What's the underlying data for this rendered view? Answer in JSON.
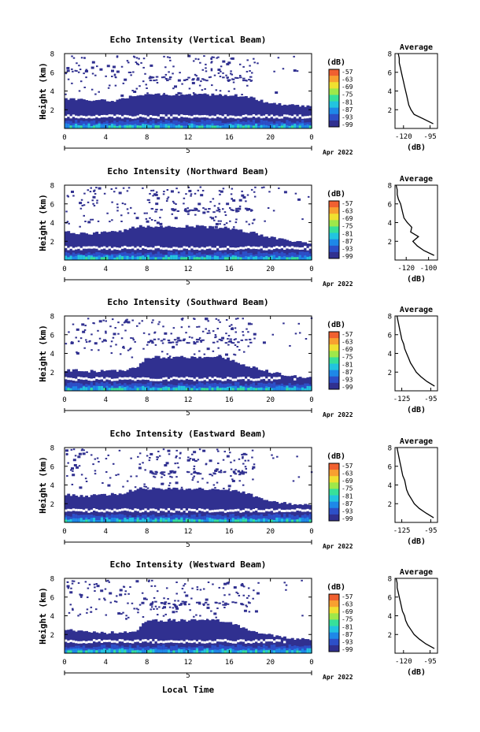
{
  "figure": {
    "xaxis_label": "Local Time",
    "date_label": "Apr 2022",
    "date_day": "5",
    "colorbar_unit": "(dB)",
    "colorbar_ticks": [
      "-57",
      "-63",
      "-69",
      "-75",
      "-81",
      "-87",
      "-93",
      "-99"
    ],
    "colorscale": [
      "#303090",
      "#2d4fc8",
      "#1e88e8",
      "#22c4e0",
      "#37e09a",
      "#9ee84a",
      "#f0e030",
      "#f8a030",
      "#f06030"
    ]
  },
  "chart_data": [
    {
      "type": "heatmap",
      "title": "Echo Intensity (Vertical Beam)",
      "ylabel": "Height (km)",
      "xlim": [
        0,
        24
      ],
      "ylim": [
        0,
        8
      ],
      "xticks": [
        "0",
        "4",
        "8",
        "12",
        "16",
        "20",
        "0"
      ],
      "yticks": [
        "2",
        "4",
        "6",
        "8"
      ],
      "clim": [
        -99,
        -57
      ],
      "boundary_layer_top_km": [
        3.2,
        3.1,
        3.0,
        3.0,
        3.0,
        3.0,
        3.3,
        3.6,
        3.6,
        3.6,
        3.6,
        3.6,
        3.6,
        3.6,
        3.6,
        3.6,
        3.6,
        3.5,
        3.3,
        3.0,
        2.6,
        2.6,
        2.5,
        2.4
      ],
      "average": {
        "title": "Average",
        "xlabel": "(dB)",
        "xticks": [
          "-120",
          "-95"
        ],
        "xlim": [
          -128,
          -88
        ],
        "yticks": [
          "2",
          "4",
          "6",
          "8"
        ],
        "ylim": [
          0,
          8
        ],
        "height_km": [
          0.5,
          1.0,
          1.5,
          2.0,
          2.5,
          3.0,
          3.5,
          4.0,
          4.5,
          5.0,
          5.5,
          6.0,
          6.5,
          7.0,
          7.5,
          8.0
        ],
        "value_db": [
          -92,
          -101,
          -110,
          -113,
          -115,
          -116,
          -117,
          -118,
          -119,
          -120,
          -121,
          -122,
          -123,
          -124,
          -124,
          -125
        ]
      }
    },
    {
      "type": "heatmap",
      "title": "Echo Intensity (Northward Beam)",
      "ylabel": "Height (km)",
      "xlim": [
        0,
        24
      ],
      "ylim": [
        0,
        8
      ],
      "xticks": [
        "0",
        "4",
        "8",
        "12",
        "16",
        "20",
        "0"
      ],
      "yticks": [
        "2",
        "4",
        "6",
        "8"
      ],
      "clim": [
        -99,
        -57
      ],
      "boundary_layer_top_km": [
        3.0,
        2.9,
        2.8,
        2.9,
        3.0,
        3.0,
        3.2,
        3.6,
        3.6,
        3.6,
        3.6,
        3.6,
        3.6,
        3.6,
        3.5,
        3.5,
        3.4,
        3.2,
        3.0,
        2.7,
        2.4,
        2.2,
        2.0,
        1.9
      ],
      "average": {
        "title": "Average",
        "xlabel": "(dB)",
        "xticks": [
          "-120",
          "-100"
        ],
        "xlim": [
          -130,
          -92
        ],
        "yticks": [
          "2",
          "4",
          "6",
          "8"
        ],
        "ylim": [
          0,
          8
        ],
        "height_km": [
          0.5,
          1.0,
          1.5,
          2.0,
          2.5,
          3.0,
          3.5,
          4.0,
          4.5,
          5.0,
          5.5,
          6.0,
          6.5,
          7.0,
          7.5,
          8.0
        ],
        "value_db": [
          -95,
          -104,
          -110,
          -114,
          -109,
          -116,
          -115,
          -119,
          -122,
          -123,
          -124,
          -125,
          -127,
          -128,
          -128,
          -129
        ]
      }
    },
    {
      "type": "heatmap",
      "title": "Echo Intensity (Southward Beam)",
      "ylabel": "Height (km)",
      "xlim": [
        0,
        24
      ],
      "ylim": [
        0,
        8
      ],
      "xticks": [
        "0",
        "4",
        "8",
        "12",
        "16",
        "20",
        "0"
      ],
      "yticks": [
        "2",
        "4",
        "6",
        "8"
      ],
      "clim": [
        -99,
        -57
      ],
      "boundary_layer_top_km": [
        2.2,
        2.2,
        2.1,
        2.1,
        2.1,
        2.1,
        2.2,
        2.5,
        3.6,
        3.6,
        3.6,
        3.6,
        3.6,
        3.6,
        3.6,
        3.6,
        3.4,
        3.0,
        2.6,
        2.3,
        2.0,
        1.8,
        1.6,
        1.5
      ],
      "average": {
        "title": "Average",
        "xlabel": "(dB)",
        "xticks": [
          "-125",
          "-95"
        ],
        "xlim": [
          -132,
          -88
        ],
        "yticks": [
          "2",
          "4",
          "6",
          "8"
        ],
        "ylim": [
          0,
          8
        ],
        "height_km": [
          0.5,
          1.0,
          1.5,
          2.0,
          2.5,
          3.0,
          3.5,
          4.0,
          4.5,
          5.0,
          5.5,
          6.0,
          6.5,
          7.0,
          7.5,
          8.0
        ],
        "value_db": [
          -91,
          -99,
          -105,
          -110,
          -113,
          -116,
          -118,
          -120,
          -122,
          -123,
          -125,
          -126,
          -127,
          -128,
          -129,
          -130
        ]
      }
    },
    {
      "type": "heatmap",
      "title": "Echo Intensity (Eastward Beam)",
      "ylabel": "Height (km)",
      "xlim": [
        0,
        24
      ],
      "ylim": [
        0,
        8
      ],
      "xticks": [
        "0",
        "4",
        "8",
        "12",
        "16",
        "20",
        "0"
      ],
      "yticks": [
        "2",
        "4",
        "6",
        "8"
      ],
      "clim": [
        -99,
        -57
      ],
      "boundary_layer_top_km": [
        3.0,
        2.9,
        2.8,
        2.9,
        3.0,
        3.0,
        3.2,
        3.6,
        3.6,
        3.6,
        3.6,
        3.6,
        3.6,
        3.6,
        3.6,
        3.6,
        3.5,
        3.3,
        3.0,
        2.6,
        2.3,
        2.1,
        2.0,
        1.9
      ],
      "average": {
        "title": "Average",
        "xlabel": "(dB)",
        "xticks": [
          "-125",
          "-95"
        ],
        "xlim": [
          -132,
          -88
        ],
        "yticks": [
          "2",
          "4",
          "6",
          "8"
        ],
        "ylim": [
          0,
          8
        ],
        "height_km": [
          0.5,
          1.0,
          1.5,
          2.0,
          2.5,
          3.0,
          3.5,
          4.0,
          4.5,
          5.0,
          5.5,
          6.0,
          6.5,
          7.0,
          7.5,
          8.0
        ],
        "value_db": [
          -92,
          -100,
          -107,
          -112,
          -115,
          -118,
          -120,
          -121,
          -122,
          -124,
          -125,
          -126,
          -127,
          -128,
          -129,
          -130
        ]
      }
    },
    {
      "type": "heatmap",
      "title": "Echo Intensity (Westward Beam)",
      "ylabel": "Height (km)",
      "xlim": [
        0,
        24
      ],
      "ylim": [
        0,
        8
      ],
      "xticks": [
        "0",
        "4",
        "8",
        "12",
        "16",
        "20",
        "0"
      ],
      "yticks": [
        "2",
        "4",
        "6",
        "8"
      ],
      "clim": [
        -99,
        -57
      ],
      "boundary_layer_top_km": [
        2.5,
        2.4,
        2.3,
        2.3,
        2.2,
        2.2,
        2.3,
        2.4,
        3.5,
        3.5,
        3.5,
        3.5,
        3.5,
        3.5,
        3.5,
        3.5,
        3.3,
        2.9,
        2.5,
        2.2,
        1.9,
        1.7,
        1.6,
        1.5
      ],
      "average": {
        "title": "Average",
        "xlabel": "(dB)",
        "xticks": [
          "-120",
          "-95"
        ],
        "xlim": [
          -128,
          -88
        ],
        "yticks": [
          "2",
          "4",
          "6",
          "8"
        ],
        "ylim": [
          0,
          8
        ],
        "height_km": [
          0.5,
          1.0,
          1.5,
          2.0,
          2.5,
          3.0,
          3.5,
          4.0,
          4.5,
          5.0,
          5.5,
          6.0,
          6.5,
          7.0,
          7.5,
          8.0
        ],
        "value_db": [
          -91,
          -99,
          -105,
          -110,
          -113,
          -116,
          -118,
          -119,
          -121,
          -122,
          -123,
          -124,
          -125,
          -126,
          -126,
          -127
        ]
      }
    }
  ]
}
